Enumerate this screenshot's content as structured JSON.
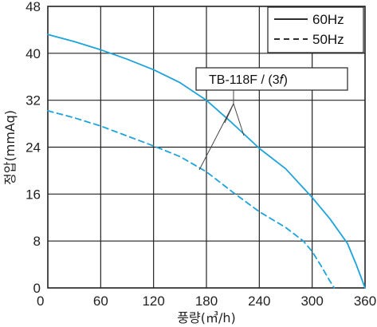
{
  "chart_data": {
    "type": "line",
    "xlabel": "풍량(㎥/h)",
    "ylabel": "정압(mmAq)",
    "xlim": [
      0,
      360
    ],
    "ylim": [
      0,
      48
    ],
    "x_ticks": [
      "0",
      "60",
      "120",
      "180",
      "240",
      "300",
      "360"
    ],
    "y_ticks": [
      "0",
      "8",
      "16",
      "24",
      "32",
      "40",
      "48"
    ],
    "grid": true,
    "legend_position": "top-right",
    "series": [
      {
        "name": "60Hz",
        "style": "solid",
        "color": "#1ea3da",
        "x": [
          0,
          30,
          60,
          90,
          120,
          150,
          180,
          210,
          240,
          270,
          300,
          320,
          340,
          350,
          360
        ],
        "y": [
          43.2,
          42,
          40.6,
          39,
          37.2,
          35,
          32,
          28,
          23.8,
          20.3,
          15.4,
          11.8,
          7.6,
          4,
          0
        ]
      },
      {
        "name": "50Hz",
        "style": "dashed",
        "color": "#1ea3da",
        "x": [
          0,
          30,
          60,
          90,
          120,
          150,
          180,
          210,
          240,
          270,
          290,
          300,
          310,
          320,
          325
        ],
        "y": [
          30.2,
          29,
          27.6,
          25.9,
          24.2,
          22.4,
          19.8,
          16.3,
          13,
          10.3,
          8,
          6.2,
          3.8,
          1.2,
          0
        ]
      }
    ],
    "annotation": {
      "text": "TB-118F / (3𝑓)"
    }
  }
}
